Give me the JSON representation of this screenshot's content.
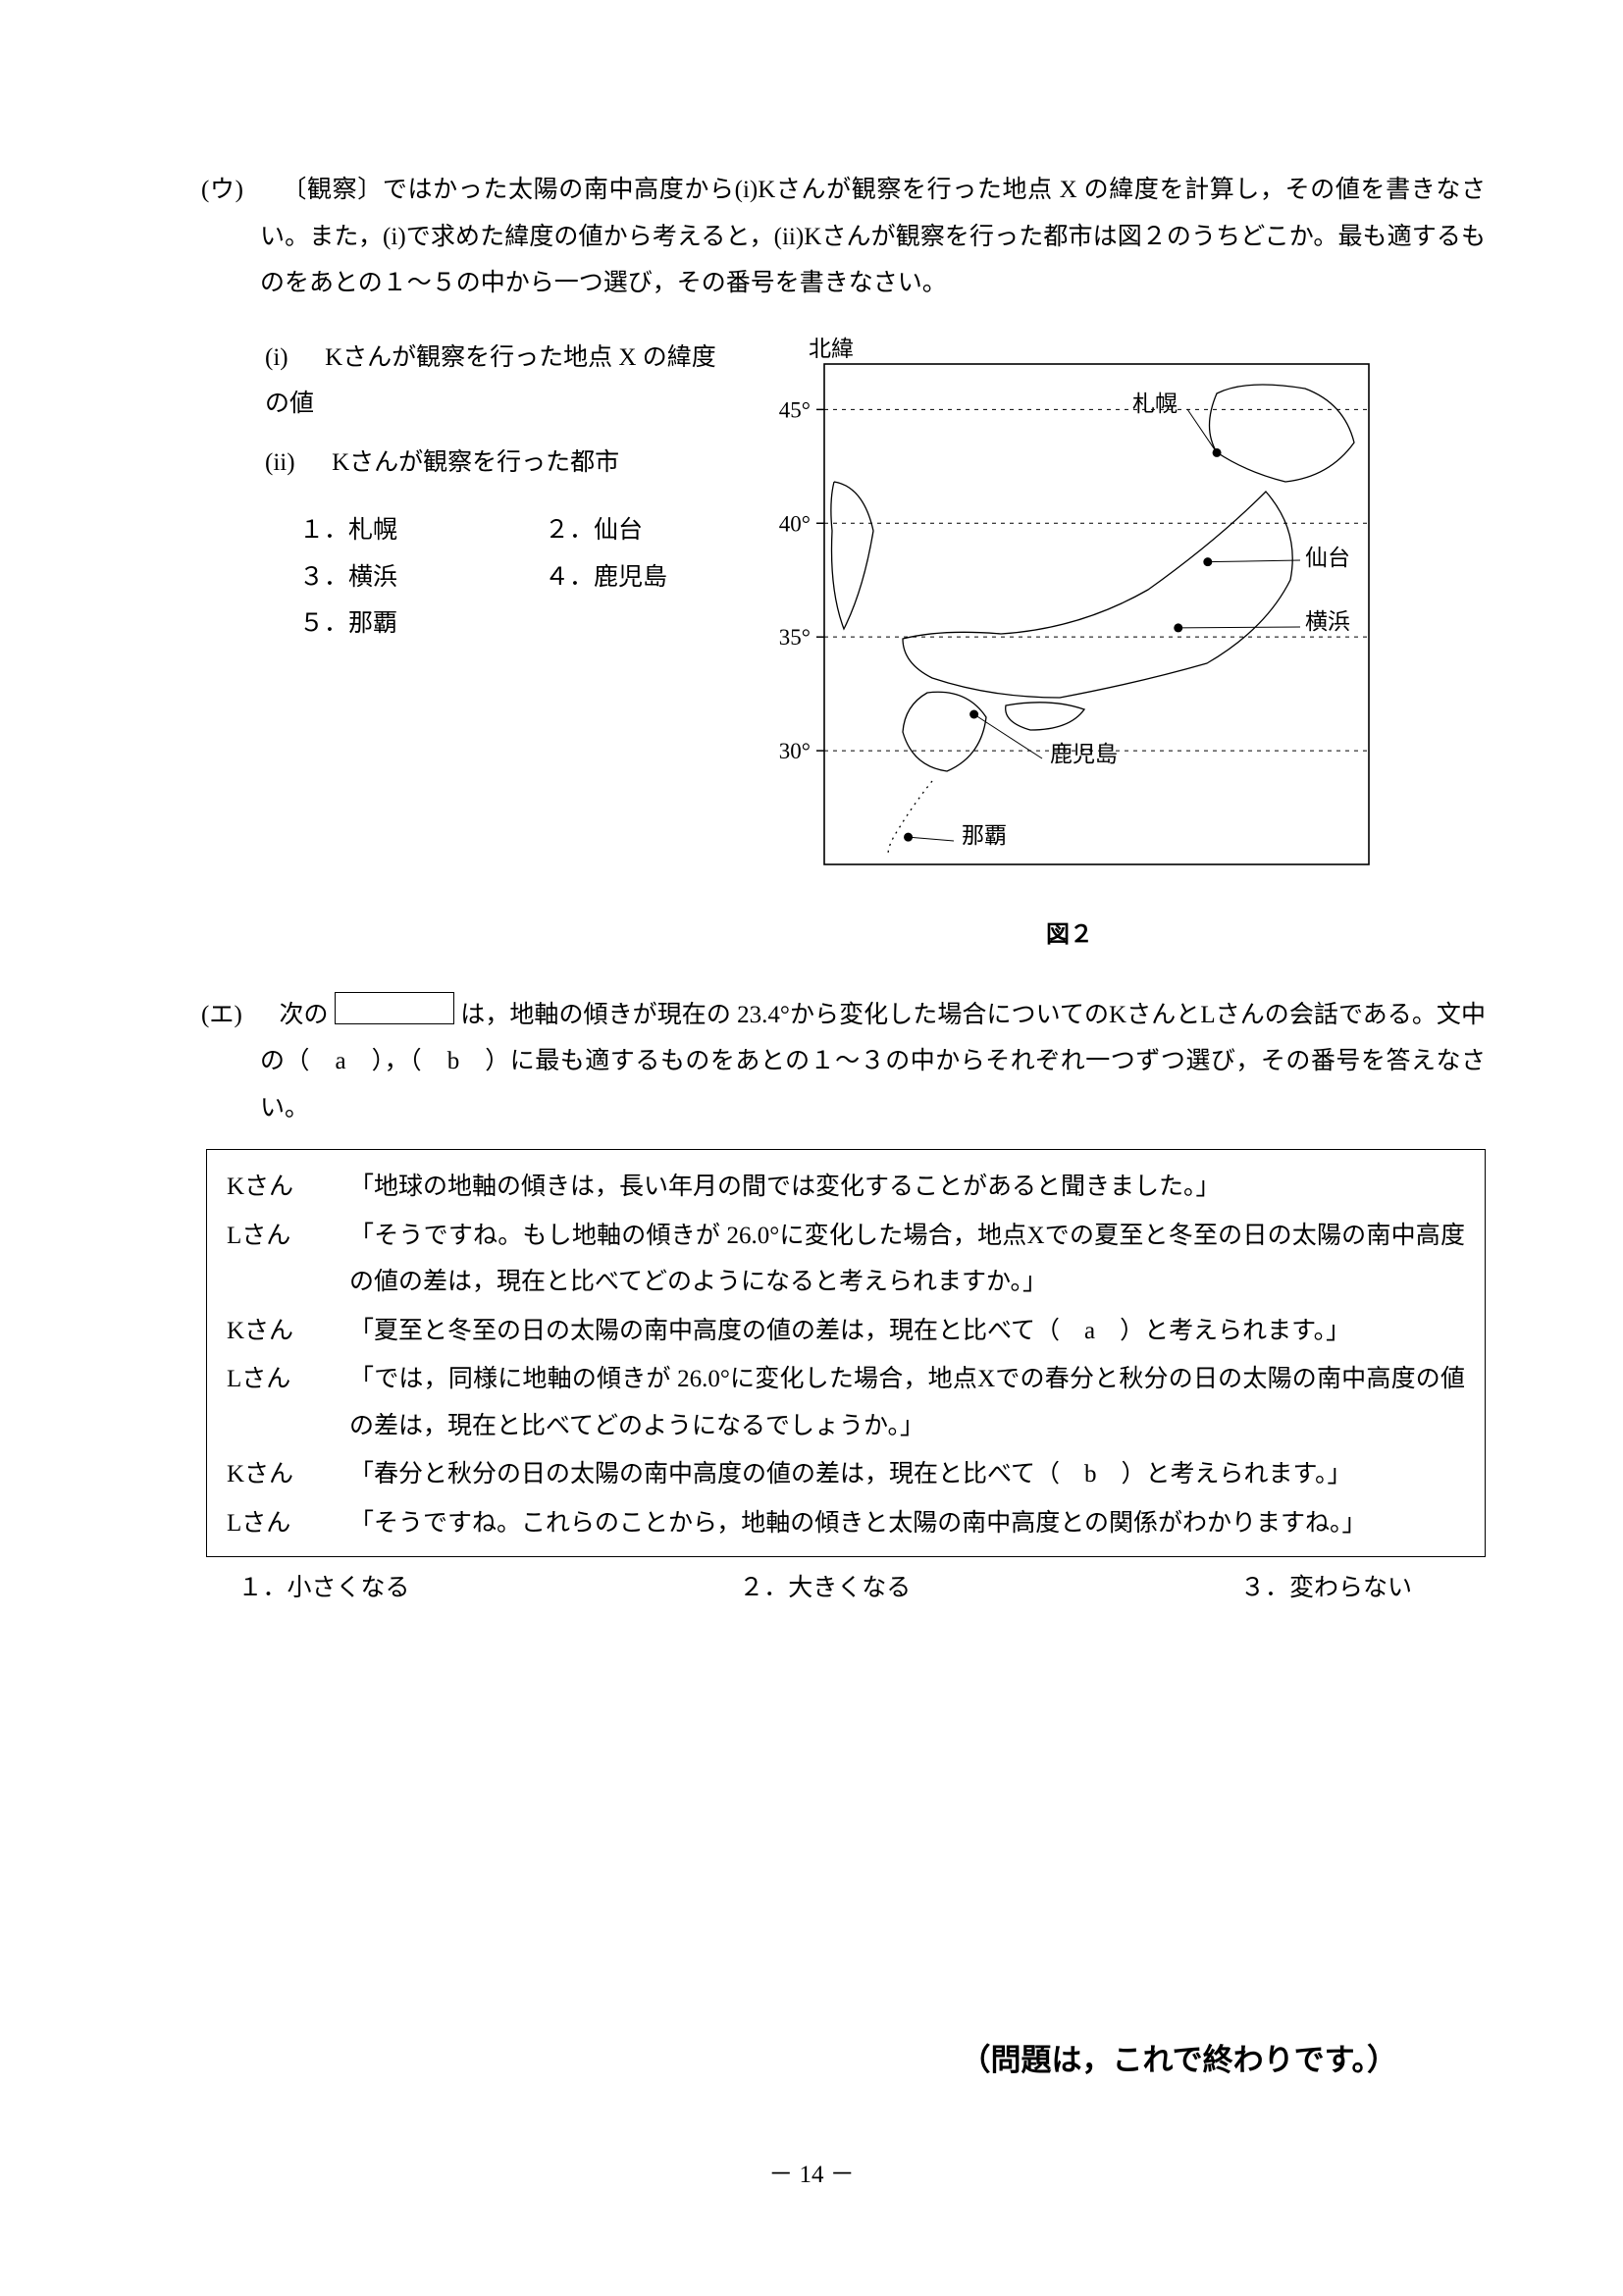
{
  "colors": {
    "ink": "#000000",
    "paper": "#ffffff",
    "mapStroke": "#222222"
  },
  "u": {
    "marker": "(ウ)",
    "intro": "〔観察〕ではかった太陽の南中高度から(i)Kさんが観察を行った地点 X の緯度を計算し，その値を書きなさい。また，(i)で求めた緯度の値から考えると，(ii)Kさんが観察を行った都市は図２のうちどこか。最も適するものをあとの１〜５の中から一つ選び，その番号を書きなさい。",
    "i_label": "(i)",
    "i_text": "Kさんが観察を行った地点 X の緯度の値",
    "ii_label": "(ii)",
    "ii_text": "Kさんが観察を行った都市",
    "options": {
      "1": "１．札幌",
      "2": "２．仙台",
      "3": "３．横浜",
      "4": "４．鹿児島",
      "5": "５．那覇"
    }
  },
  "map": {
    "caption": "図２",
    "north_label": "北緯",
    "lat_ticks": [
      "45°",
      "40°",
      "35°",
      "30°"
    ],
    "lat_values_deg": [
      45,
      40,
      35,
      30
    ],
    "cities": [
      {
        "name": "札幌",
        "lat": 43.1,
        "lon": 141.3
      },
      {
        "name": "仙台",
        "lat": 38.3,
        "lon": 140.9
      },
      {
        "name": "横浜",
        "lat": 35.4,
        "lon": 139.6
      },
      {
        "name": "鹿児島",
        "lat": 31.6,
        "lon": 130.6
      },
      {
        "name": "那覇",
        "lat": 26.2,
        "lon": 127.7
      }
    ]
  },
  "e": {
    "marker": "(エ)",
    "pre": "次の",
    "post": "は，地軸の傾きが現在の 23.4°から変化した場合についてのKさんとLさんの会話である。文中の（　a　），（　b　）に最も適するものをあとの１〜３の中からそれぞれ一つずつ選び，その番号を答えなさい。",
    "dialog": [
      {
        "spk": "Kさん",
        "txt": "「地球の地軸の傾きは，長い年月の間では変化することがあると聞きました。」"
      },
      {
        "spk": "Lさん",
        "txt": "「そうですね。もし地軸の傾きが 26.0°に変化した場合，地点Xでの夏至と冬至の日の太陽の南中高度の値の差は，現在と比べてどのようになると考えられますか。」"
      },
      {
        "spk": "Kさん",
        "txt": "「夏至と冬至の日の太陽の南中高度の値の差は，現在と比べて（　a　）と考えられます。」"
      },
      {
        "spk": "Lさん",
        "txt": "「では，同様に地軸の傾きが 26.0°に変化した場合，地点Xでの春分と秋分の日の太陽の南中高度の値の差は，現在と比べてどのようになるでしょうか。」"
      },
      {
        "spk": "Kさん",
        "txt": "「春分と秋分の日の太陽の南中高度の値の差は，現在と比べて（　b　）と考えられます。」"
      },
      {
        "spk": "Lさん",
        "txt": "「そうですね。これらのことから，地軸の傾きと太陽の南中高度との関係がわかりますね。」"
      }
    ],
    "answers": {
      "1": "１．小さくなる",
      "2": "２．大きくなる",
      "3": "３．変わらない"
    }
  },
  "end_note": "（問題は，これで終わりです。）",
  "page_number": "－ 14 －"
}
